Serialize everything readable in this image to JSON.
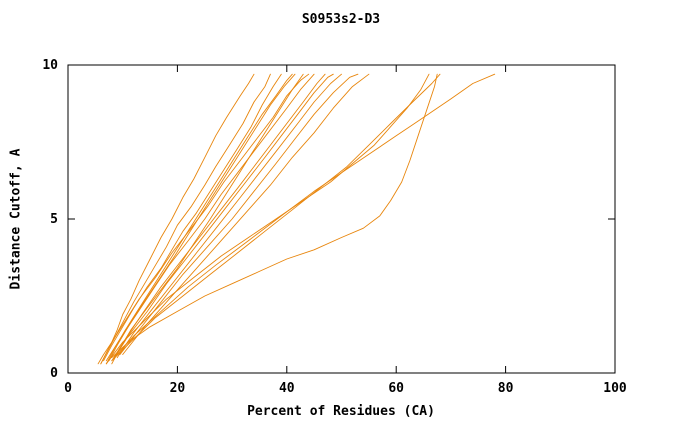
{
  "chart_data": {
    "type": "line",
    "title": "S0953s2-D3",
    "xlabel": "Percent of Residues (CA)",
    "ylabel": "Distance Cutoff, A",
    "xlim": [
      0,
      100
    ],
    "ylim": [
      0,
      10
    ],
    "xticks": [
      0,
      20,
      40,
      60,
      80,
      100
    ],
    "yticks": [
      0,
      5,
      10
    ],
    "grid": false,
    "legend": "none",
    "line_color": "#e8860d",
    "axis_color": "#000000",
    "series": [
      {
        "points": [
          [
            5.5,
            0.3
          ],
          [
            6.5,
            0.6
          ],
          [
            8,
            1.0
          ],
          [
            9,
            1.4
          ],
          [
            10,
            1.9
          ],
          [
            11.5,
            2.4
          ],
          [
            13,
            3.0
          ],
          [
            15,
            3.7
          ],
          [
            17,
            4.4
          ],
          [
            19,
            5.0
          ],
          [
            21,
            5.7
          ],
          [
            23,
            6.3
          ],
          [
            25,
            7.0
          ],
          [
            27,
            7.7
          ],
          [
            29,
            8.3
          ],
          [
            31.5,
            9.0
          ],
          [
            33,
            9.4
          ],
          [
            34,
            9.7
          ]
        ]
      },
      {
        "points": [
          [
            6,
            0.3
          ],
          [
            7.5,
            0.8
          ],
          [
            9,
            1.3
          ],
          [
            10.5,
            1.8
          ],
          [
            12,
            2.3
          ],
          [
            14,
            2.9
          ],
          [
            16,
            3.5
          ],
          [
            18,
            4.1
          ],
          [
            20,
            4.8
          ],
          [
            22.5,
            5.4
          ],
          [
            25,
            6.1
          ],
          [
            27,
            6.7
          ],
          [
            29.5,
            7.4
          ],
          [
            32,
            8.1
          ],
          [
            34,
            8.8
          ],
          [
            36,
            9.3
          ],
          [
            37,
            9.7
          ]
        ]
      },
      {
        "points": [
          [
            6.5,
            0.4
          ],
          [
            8,
            0.9
          ],
          [
            10,
            1.5
          ],
          [
            12,
            2.1
          ],
          [
            14.5,
            2.8
          ],
          [
            17,
            3.4
          ],
          [
            19,
            4.0
          ],
          [
            21,
            4.6
          ],
          [
            23.5,
            5.2
          ],
          [
            26,
            5.9
          ],
          [
            28.5,
            6.6
          ],
          [
            31,
            7.3
          ],
          [
            33.5,
            8.0
          ],
          [
            35.5,
            8.7
          ],
          [
            37.5,
            9.3
          ],
          [
            39,
            9.7
          ]
        ]
      },
      {
        "points": [
          [
            7,
            0.3
          ],
          [
            8.5,
            0.8
          ],
          [
            10.5,
            1.4
          ],
          [
            13,
            2.1
          ],
          [
            15.5,
            2.8
          ],
          [
            18,
            3.5
          ],
          [
            20.5,
            4.2
          ],
          [
            23,
            4.9
          ],
          [
            25.5,
            5.6
          ],
          [
            28,
            6.3
          ],
          [
            30.5,
            7.0
          ],
          [
            33,
            7.7
          ],
          [
            35.5,
            8.4
          ],
          [
            38,
            9.0
          ],
          [
            40,
            9.5
          ],
          [
            41,
            9.7
          ]
        ]
      },
      {
        "points": [
          [
            7.5,
            0.4
          ],
          [
            9,
            0.9
          ],
          [
            11,
            1.5
          ],
          [
            13.5,
            2.2
          ],
          [
            16.5,
            3.0
          ],
          [
            19.5,
            3.8
          ],
          [
            22,
            4.5
          ],
          [
            24.5,
            5.2
          ],
          [
            27,
            5.9
          ],
          [
            29.5,
            6.6
          ],
          [
            32,
            7.3
          ],
          [
            34.5,
            8.0
          ],
          [
            37,
            8.7
          ],
          [
            39.5,
            9.3
          ],
          [
            41.5,
            9.7
          ]
        ]
      },
      {
        "points": [
          [
            8,
            0.3
          ],
          [
            9.5,
            0.8
          ],
          [
            11.5,
            1.4
          ],
          [
            14,
            2.0
          ],
          [
            17,
            2.7
          ],
          [
            20,
            3.4
          ],
          [
            23,
            4.2
          ],
          [
            26,
            5.0
          ],
          [
            28.5,
            5.7
          ],
          [
            31,
            6.4
          ],
          [
            33.5,
            7.1
          ],
          [
            36,
            7.8
          ],
          [
            38.5,
            8.5
          ],
          [
            41,
            9.2
          ],
          [
            43,
            9.7
          ]
        ]
      },
      {
        "points": [
          [
            6,
            0.3
          ],
          [
            8,
            1.0
          ],
          [
            10.5,
            1.7
          ],
          [
            13,
            2.4
          ],
          [
            16,
            3.1
          ],
          [
            19,
            3.9
          ],
          [
            22.5,
            4.7
          ],
          [
            25.5,
            5.4
          ],
          [
            28.5,
            6.2
          ],
          [
            31.5,
            6.9
          ],
          [
            34.5,
            7.6
          ],
          [
            37.5,
            8.3
          ],
          [
            40,
            9.0
          ],
          [
            42.5,
            9.5
          ],
          [
            44,
            9.7
          ]
        ]
      },
      {
        "points": [
          [
            7,
            0.4
          ],
          [
            9.5,
            1.1
          ],
          [
            12.5,
            1.9
          ],
          [
            15.5,
            2.7
          ],
          [
            18.5,
            3.5
          ],
          [
            22,
            4.3
          ],
          [
            25,
            5.0
          ],
          [
            28,
            5.8
          ],
          [
            31,
            6.5
          ],
          [
            34,
            7.2
          ],
          [
            37,
            7.9
          ],
          [
            40,
            8.6
          ],
          [
            42.5,
            9.2
          ],
          [
            45,
            9.7
          ]
        ]
      },
      {
        "points": [
          [
            8,
            0.4
          ],
          [
            10.5,
            1.1
          ],
          [
            13.5,
            1.9
          ],
          [
            17,
            2.8
          ],
          [
            20.5,
            3.6
          ],
          [
            24,
            4.4
          ],
          [
            27.5,
            5.2
          ],
          [
            31,
            6.0
          ],
          [
            34,
            6.7
          ],
          [
            37,
            7.4
          ],
          [
            40,
            8.1
          ],
          [
            43,
            8.8
          ],
          [
            45.5,
            9.4
          ],
          [
            47,
            9.7
          ]
        ]
      },
      {
        "points": [
          [
            8.5,
            0.5
          ],
          [
            11,
            1.2
          ],
          [
            14.5,
            2.0
          ],
          [
            18,
            2.9
          ],
          [
            22,
            3.8
          ],
          [
            25.5,
            4.6
          ],
          [
            29,
            5.4
          ],
          [
            32.5,
            6.2
          ],
          [
            36,
            7.0
          ],
          [
            39,
            7.7
          ],
          [
            42,
            8.4
          ],
          [
            45,
            9.1
          ],
          [
            47.5,
            9.6
          ],
          [
            48.5,
            9.7
          ]
        ]
      },
      {
        "points": [
          [
            9,
            0.5
          ],
          [
            12,
            1.3
          ],
          [
            15.5,
            2.1
          ],
          [
            19.5,
            3.0
          ],
          [
            23.5,
            3.9
          ],
          [
            27.5,
            4.8
          ],
          [
            31.5,
            5.7
          ],
          [
            35,
            6.5
          ],
          [
            38.5,
            7.3
          ],
          [
            42,
            8.1
          ],
          [
            45,
            8.8
          ],
          [
            48,
            9.4
          ],
          [
            50,
            9.7
          ]
        ]
      },
      {
        "points": [
          [
            9.5,
            0.6
          ],
          [
            13,
            1.4
          ],
          [
            17,
            2.3
          ],
          [
            21,
            3.2
          ],
          [
            25.5,
            4.1
          ],
          [
            30,
            5.0
          ],
          [
            34,
            5.9
          ],
          [
            38,
            6.8
          ],
          [
            41.5,
            7.6
          ],
          [
            45,
            8.4
          ],
          [
            48.5,
            9.1
          ],
          [
            51.5,
            9.6
          ],
          [
            53,
            9.7
          ]
        ]
      },
      {
        "points": [
          [
            10,
            0.6
          ],
          [
            14,
            1.5
          ],
          [
            18.5,
            2.4
          ],
          [
            23,
            3.3
          ],
          [
            28,
            4.3
          ],
          [
            32.5,
            5.2
          ],
          [
            37,
            6.1
          ],
          [
            41,
            7.0
          ],
          [
            45,
            7.8
          ],
          [
            48.5,
            8.6
          ],
          [
            52,
            9.3
          ],
          [
            55,
            9.7
          ]
        ]
      },
      {
        "points": [
          [
            7,
            0.3
          ],
          [
            10,
            1.0
          ],
          [
            14,
            1.7
          ],
          [
            18,
            2.4
          ],
          [
            23,
            3.1
          ],
          [
            28,
            3.8
          ],
          [
            33,
            4.4
          ],
          [
            38,
            5.0
          ],
          [
            43,
            5.6
          ],
          [
            48,
            6.2
          ],
          [
            52,
            6.8
          ],
          [
            56,
            7.4
          ],
          [
            59,
            8.0
          ],
          [
            62,
            8.6
          ],
          [
            64.5,
            9.2
          ],
          [
            66,
            9.7
          ]
        ]
      },
      {
        "points": [
          [
            8,
            0.4
          ],
          [
            12,
            1.1
          ],
          [
            16,
            1.8
          ],
          [
            21,
            2.5
          ],
          [
            26,
            3.2
          ],
          [
            31,
            3.9
          ],
          [
            36,
            4.6
          ],
          [
            41,
            5.3
          ],
          [
            46,
            6.0
          ],
          [
            51,
            6.7
          ],
          [
            55,
            7.4
          ],
          [
            59,
            8.1
          ],
          [
            63,
            8.8
          ],
          [
            66.5,
            9.4
          ],
          [
            68,
            9.7
          ]
        ]
      },
      {
        "points": [
          [
            8.5,
            0.5
          ],
          [
            12,
            1.2
          ],
          [
            17,
            2.0
          ],
          [
            22,
            2.8
          ],
          [
            27,
            3.5
          ],
          [
            33,
            4.3
          ],
          [
            39,
            5.1
          ],
          [
            45,
            5.9
          ],
          [
            50,
            6.5
          ],
          [
            55,
            7.1
          ],
          [
            60,
            7.7
          ],
          [
            65,
            8.3
          ],
          [
            70,
            8.9
          ],
          [
            74,
            9.4
          ],
          [
            78,
            9.7
          ]
        ]
      },
      {
        "points": [
          [
            8,
            0.5
          ],
          [
            11,
            1.0
          ],
          [
            15,
            1.5
          ],
          [
            20,
            2.0
          ],
          [
            25,
            2.5
          ],
          [
            30,
            2.9
          ],
          [
            35,
            3.3
          ],
          [
            40,
            3.7
          ],
          [
            45,
            4.0
          ],
          [
            50,
            4.4
          ],
          [
            54,
            4.7
          ],
          [
            57,
            5.1
          ],
          [
            59,
            5.6
          ],
          [
            61,
            6.2
          ],
          [
            62.5,
            6.9
          ],
          [
            64,
            7.7
          ],
          [
            65.5,
            8.5
          ],
          [
            67,
            9.3
          ],
          [
            67.5,
            9.7
          ]
        ]
      }
    ]
  }
}
